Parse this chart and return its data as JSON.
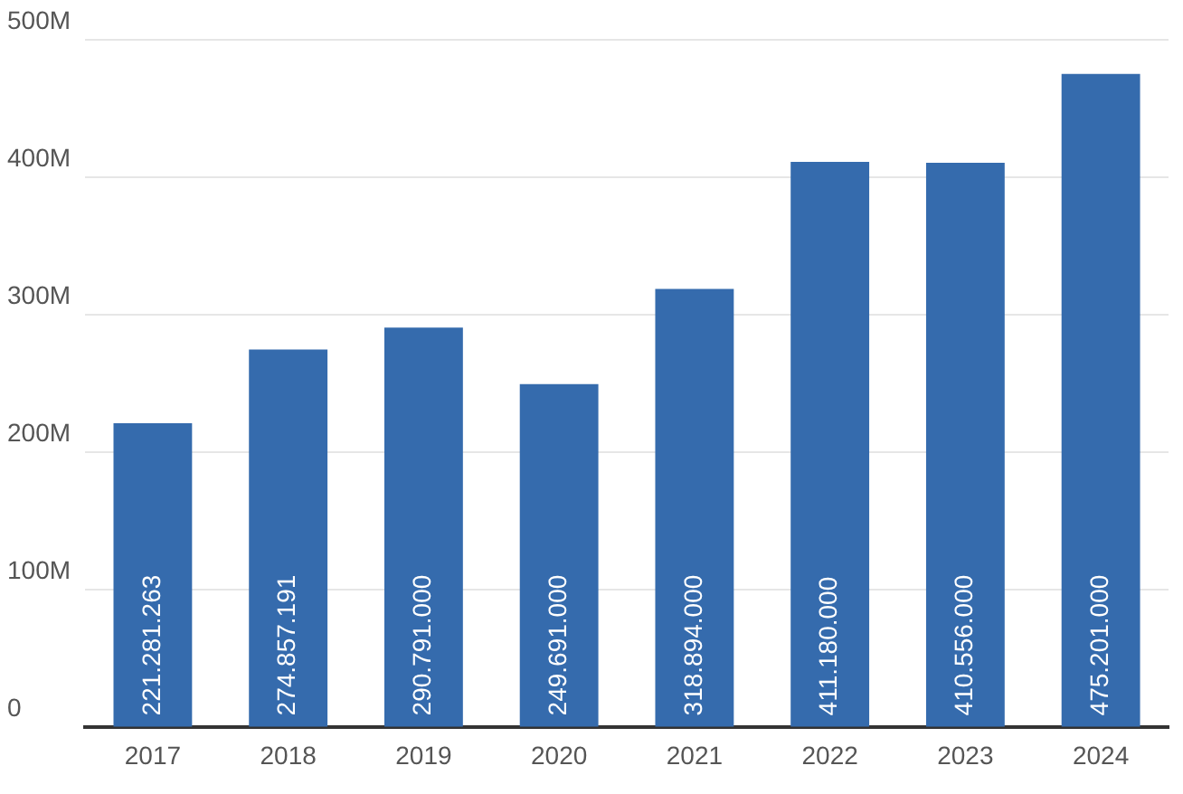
{
  "chart_data": {
    "type": "bar",
    "categories": [
      "2017",
      "2018",
      "2019",
      "2020",
      "2021",
      "2022",
      "2023",
      "2024"
    ],
    "values": [
      221281263,
      274857191,
      290791000,
      249691000,
      318894000,
      411180000,
      410556000,
      475201000
    ],
    "value_labels": [
      "221.281.263",
      "274.857.191",
      "290.791.000",
      "249.691.000",
      "318.894.000",
      "411.180.000",
      "410.556.000",
      "475.201.000"
    ],
    "color": "#356bad",
    "ylim": [
      0,
      500000000
    ],
    "yticks": [
      {
        "value": 0,
        "label": "0"
      },
      {
        "value": 100000000,
        "label": "100M"
      },
      {
        "value": 200000000,
        "label": "200M"
      },
      {
        "value": 300000000,
        "label": "300M"
      },
      {
        "value": 400000000,
        "label": "400M"
      },
      {
        "value": 500000000,
        "label": "500M"
      }
    ],
    "grid": "y",
    "legend": false
  }
}
